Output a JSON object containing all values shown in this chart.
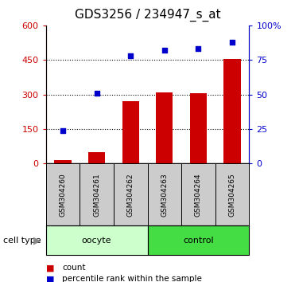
{
  "title": "GDS3256 / 234947_s_at",
  "categories": [
    "GSM304260",
    "GSM304261",
    "GSM304262",
    "GSM304263",
    "GSM304264",
    "GSM304265"
  ],
  "bar_values": [
    15,
    50,
    270,
    308,
    305,
    455
  ],
  "scatter_values": [
    24,
    51,
    78,
    82,
    83,
    88
  ],
  "bar_color": "#cc0000",
  "scatter_color": "#0000cc",
  "ylim_left": [
    0,
    600
  ],
  "ylim_right": [
    0,
    100
  ],
  "yticks_left": [
    0,
    150,
    300,
    450,
    600
  ],
  "yticks_right": [
    0,
    25,
    50,
    75,
    100
  ],
  "ytick_labels_right": [
    "0",
    "25",
    "50",
    "75",
    "100%"
  ],
  "cell_type_label": "cell type",
  "legend_count": "count",
  "legend_percentile": "percentile rank within the sample",
  "title_fontsize": 11,
  "bar_width": 0.5,
  "bg_color": "#ffffff",
  "plot_bg": "#ffffff",
  "tick_label_color_left": "#cc0000",
  "tick_label_color_right": "#0000cc",
  "sample_bg": "#cccccc",
  "oocyte_color": "#ccffcc",
  "control_color": "#44dd44"
}
